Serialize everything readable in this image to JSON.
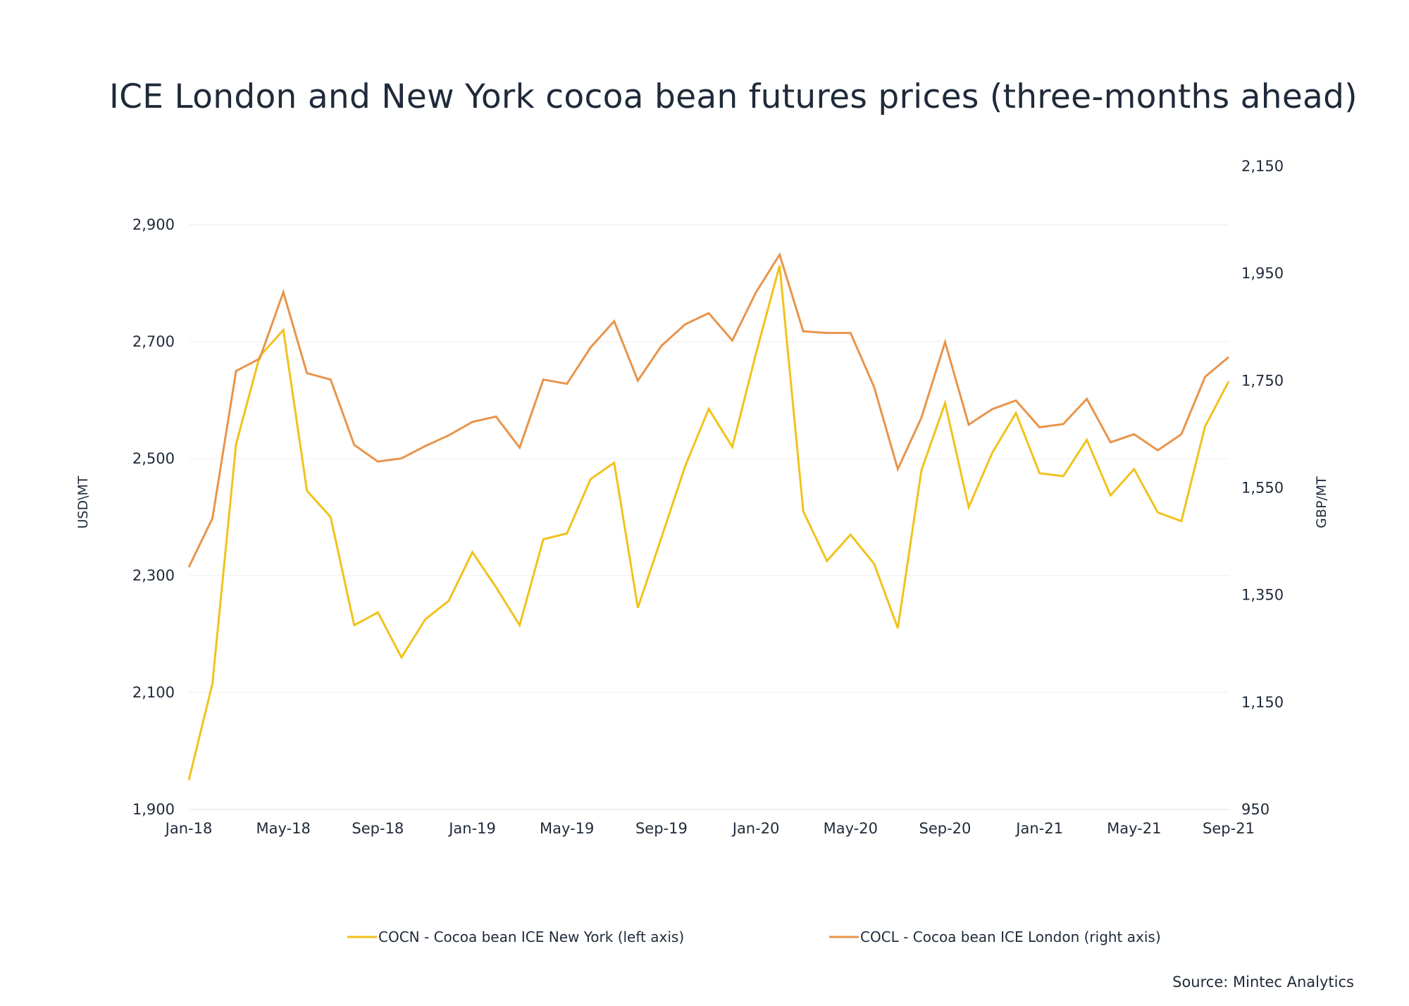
{
  "chart_data": {
    "type": "line",
    "title": "ICE London and New York cocoa bean  futures prices (three-months ahead)",
    "source": "Source: Mintec Analytics",
    "x": [
      "Jan-18",
      "Feb-18",
      "Mar-18",
      "Apr-18",
      "May-18",
      "Jun-18",
      "Jul-18",
      "Aug-18",
      "Sep-18",
      "Oct-18",
      "Nov-18",
      "Dec-18",
      "Jan-19",
      "Feb-19",
      "Mar-19",
      "Apr-19",
      "May-19",
      "Jun-19",
      "Jul-19",
      "Aug-19",
      "Sep-19",
      "Oct-19",
      "Nov-19",
      "Dec-19",
      "Jan-20",
      "Feb-20",
      "Mar-20",
      "Apr-20",
      "May-20",
      "Jun-20",
      "Jul-20",
      "Aug-20",
      "Sep-20",
      "Oct-20",
      "Nov-20",
      "Dec-20",
      "Jan-21",
      "Feb-21",
      "Mar-21",
      "Apr-21",
      "May-21",
      "Jun-21",
      "Jul-21",
      "Aug-21",
      "Sep-21"
    ],
    "x_tick_labels": [
      "Jan-18",
      "May-18",
      "Sep-18",
      "Jan-19",
      "May-19",
      "Sep-19",
      "Jan-20",
      "May-20",
      "Sep-20",
      "Jan-21",
      "May-21",
      "Sep-21"
    ],
    "y_left": {
      "label": "USD\\MT",
      "ticks": [
        "1,900",
        "2,100",
        "2,300",
        "2,500",
        "2,700",
        "2,900"
      ],
      "range": [
        1900,
        2900
      ]
    },
    "y_right": {
      "label": "GBP/MT",
      "ticks": [
        "950",
        "1,150",
        "1,350",
        "1,550",
        "1,750",
        "1,950",
        "2,150"
      ],
      "range": [
        950,
        2150
      ]
    },
    "grid": true,
    "legend_position": "bottom",
    "series": [
      {
        "name": "COCN - Cocoa bean ICE New York (left axis)",
        "axis": "left",
        "color": "#f2c21b",
        "values": [
          1950,
          2115,
          2525,
          2675,
          2720,
          2445,
          2400,
          2215,
          2237,
          2160,
          2225,
          2257,
          2340,
          2280,
          2215,
          2362,
          2372,
          2465,
          2493,
          2245,
          2365,
          2487,
          2585,
          2520,
          2680,
          2830,
          2410,
          2325,
          2370,
          2320,
          2210,
          2480,
          2595,
          2417,
          2510,
          2578,
          2475,
          2470,
          2532,
          2437,
          2482,
          2408,
          2393,
          2555,
          2632
        ]
      },
      {
        "name": "COCL - Cocoa bean ICE London (right axis)",
        "axis": "right",
        "color": "#e9944a",
        "values": [
          1402,
          1493,
          1768,
          1791,
          1915,
          1764,
          1752,
          1630,
          1599,
          1605,
          1628,
          1648,
          1673,
          1683,
          1625,
          1752,
          1744,
          1812,
          1861,
          1750,
          1815,
          1855,
          1876,
          1825,
          1915,
          1985,
          1842,
          1839,
          1839,
          1738,
          1585,
          1681,
          1822,
          1668,
          1697,
          1713,
          1663,
          1669,
          1716,
          1635,
          1650,
          1620,
          1650,
          1757,
          1794
        ]
      }
    ]
  }
}
